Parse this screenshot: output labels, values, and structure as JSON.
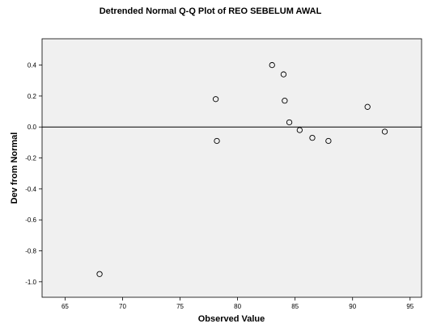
{
  "chart_data": {
    "type": "scatter",
    "title": "Detrended Normal Q-Q Plot of REO SEBELUM AWAL",
    "xlabel": "Observed Value",
    "ylabel": "Dev from Normal",
    "xlim": [
      63,
      96
    ],
    "ylim": [
      -1.1,
      0.57
    ],
    "xticks": [
      "65",
      "70",
      "75",
      "80",
      "85",
      "90",
      "95"
    ],
    "yticks": [
      "0.4",
      "0.2",
      "0.0",
      "-0.2",
      "-0.4",
      "-0.6",
      "-0.8",
      "-1.0"
    ],
    "reference_line_y": 0,
    "grid": false,
    "plot_background": "#f0f0f0",
    "points": [
      {
        "x": 68.0,
        "y": -0.95
      },
      {
        "x": 78.1,
        "y": 0.18
      },
      {
        "x": 78.2,
        "y": -0.09
      },
      {
        "x": 83.0,
        "y": 0.4
      },
      {
        "x": 84.0,
        "y": 0.34
      },
      {
        "x": 84.1,
        "y": 0.17
      },
      {
        "x": 84.5,
        "y": 0.03
      },
      {
        "x": 85.4,
        "y": -0.02
      },
      {
        "x": 86.5,
        "y": -0.07
      },
      {
        "x": 87.9,
        "y": -0.09
      },
      {
        "x": 91.3,
        "y": 0.13
      },
      {
        "x": 92.8,
        "y": -0.03
      }
    ]
  }
}
